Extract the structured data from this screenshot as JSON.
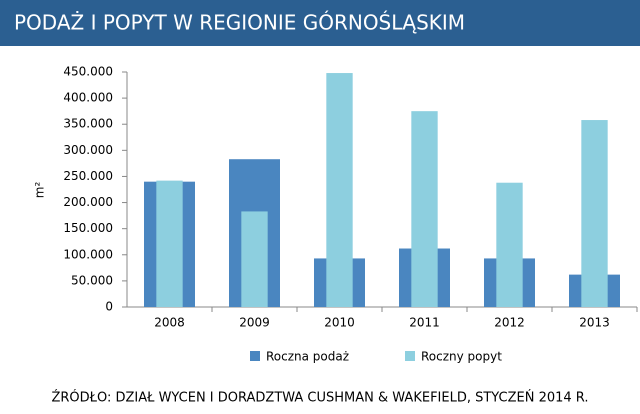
{
  "chart_data": {
    "type": "bar",
    "title": "PODAŻ I POPYT W REGIONIE GÓRNOŚLĄSKIM",
    "y_label": "m²",
    "source": "ŹRÓDŁO: DZIAŁ WYCEN I DORADZTWA CUSHMAN & WAKEFIELD, STYCZEŃ 2014 R.",
    "categories": [
      "2008",
      "2009",
      "2010",
      "2011",
      "2012",
      "2013"
    ],
    "series": [
      {
        "name": "Roczna podaż",
        "color": "#4a86c0",
        "values": [
          240000,
          283000,
          93000,
          112000,
          93000,
          62000
        ]
      },
      {
        "name": "Roczny popyt",
        "color": "#8dcfdf",
        "values": [
          242000,
          183000,
          448000,
          375000,
          238000,
          358000
        ]
      }
    ],
    "ylim": [
      0,
      450000
    ],
    "yticks": [
      0,
      {
        "value": 50000,
        "label": "50.000"
      },
      {
        "value": 100000,
        "label": "100.000"
      },
      {
        "value": 150000,
        "label": "150.000"
      },
      {
        "value": 200000,
        "label": "200.000"
      },
      {
        "value": 250000,
        "label": "250.000"
      },
      {
        "value": 300000,
        "label": "300.000"
      },
      {
        "value": 350000,
        "label": "350.000"
      },
      {
        "value": 400000,
        "label": "400.000"
      },
      {
        "value": 450000,
        "label": "450.000"
      }
    ],
    "legend": "bottom"
  }
}
